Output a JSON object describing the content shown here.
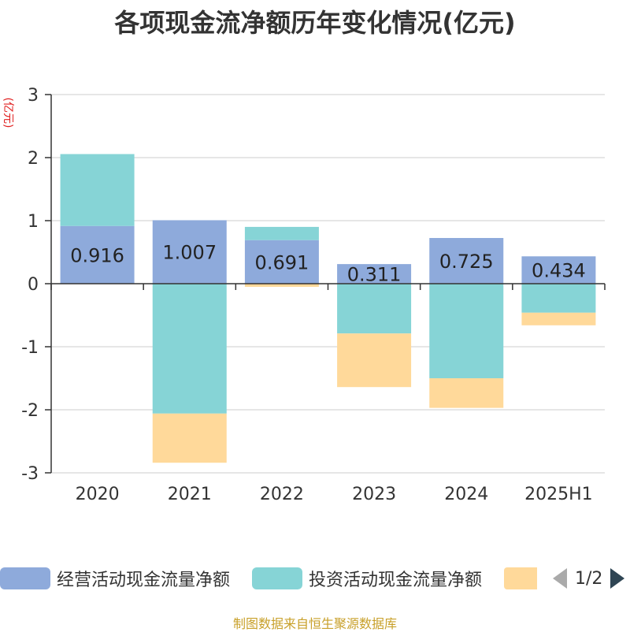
{
  "chart_data": {
    "type": "bar",
    "stacked": true,
    "title": "各项现金流净额历年变化情况(亿元)",
    "ylabel": "(亿元)",
    "ylim": [
      -3,
      3
    ],
    "yticks": [
      "3",
      "2",
      "1",
      "0",
      "-1",
      "-2",
      "-3"
    ],
    "grid": true,
    "categories": [
      "2020",
      "2021",
      "2022",
      "2023",
      "2024",
      "2025H1"
    ],
    "series": [
      {
        "name": "经营活动现金流量净额",
        "color": "#8eaadb",
        "values": [
          0.916,
          1.007,
          0.691,
          0.311,
          0.725,
          0.434
        ],
        "labels": [
          "0.916",
          "1.007",
          "0.691",
          "0.311",
          "0.725",
          "0.434"
        ]
      },
      {
        "name": "投资活动现金流量净额",
        "color": "#86d4d6",
        "values": [
          1.14,
          -2.06,
          0.21,
          -0.79,
          -1.5,
          -0.46
        ]
      },
      {
        "name": "",
        "color": "#ffd99a",
        "values": [
          0,
          -0.78,
          -0.05,
          -0.85,
          -0.47,
          -0.2
        ]
      }
    ],
    "legend_position": "bottom"
  },
  "legend": {
    "page_indicator": "1/2"
  },
  "source": "制图数据来自恒生聚源数据库"
}
